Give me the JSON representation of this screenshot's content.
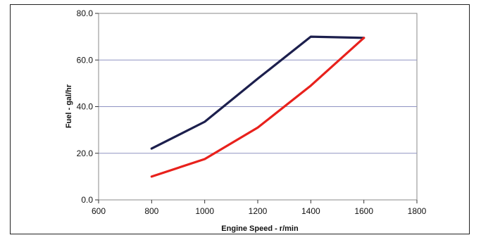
{
  "chart_data": {
    "type": "line",
    "title": "",
    "xlabel": "Engine Speed - r/min",
    "ylabel": "Fuel - gal/hr",
    "xlim": [
      600,
      1800
    ],
    "ylim": [
      0,
      80
    ],
    "x_ticks": [
      600,
      800,
      1000,
      1200,
      1400,
      1600,
      1800
    ],
    "x_tick_labels": [
      "600",
      "800",
      "1000",
      "1200",
      "1400",
      "1600",
      "1800"
    ],
    "y_ticks": [
      0,
      20,
      40,
      60,
      80
    ],
    "y_tick_labels": [
      "0.0",
      "20.0",
      "40.0",
      "60.0",
      "80.0"
    ],
    "grid": "horizontal",
    "legend": "none",
    "series": [
      {
        "color": "#1c1f4d",
        "points": [
          [
            800,
            22
          ],
          [
            1000,
            33.5
          ],
          [
            1200,
            52
          ],
          [
            1400,
            70
          ],
          [
            1600,
            69.5
          ]
        ]
      },
      {
        "color": "#e8211c",
        "points": [
          [
            800,
            10
          ],
          [
            1000,
            17.5
          ],
          [
            1200,
            31
          ],
          [
            1400,
            49
          ],
          [
            1600,
            69.5
          ]
        ]
      }
    ]
  }
}
